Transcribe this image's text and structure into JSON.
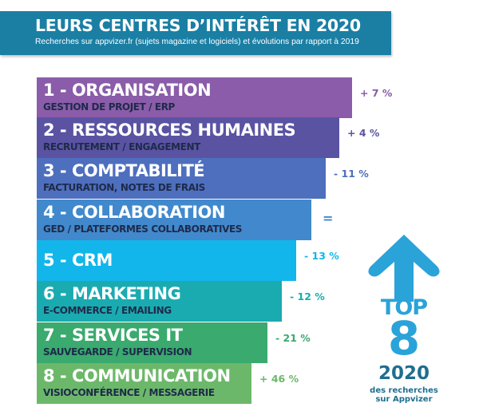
{
  "header": {
    "title": "LEURS CENTRES D’INTÉRÊT EN 2020",
    "subtitle": "Recherches sur appvizer.fr (sujets magazine et logiciels) et évolutions par rapport à 2019"
  },
  "ranking": [
    {
      "rank": 1,
      "label": "1 - ORGANISATION",
      "description": "GESTION DE PROJET / ERP",
      "change": "+ 7 %",
      "color": "#8a5ca9"
    },
    {
      "rank": 2,
      "label": "2 - RESSOURCES HUMAINES",
      "description": "RECRUTEMENT / ENGAGEMENT",
      "change": "+ 4 %",
      "color": "#5a53a2"
    },
    {
      "rank": 3,
      "label": "3 - COMPTABILITÉ",
      "description": "FACTURATION, NOTES DE FRAIS",
      "change": "- 11 %",
      "color": "#4e6fbe"
    },
    {
      "rank": 4,
      "label": "4 - COLLABORATION",
      "description": "GED / PLATEFORMES COLLABORATIVES",
      "change": "=",
      "color": "#4189cc"
    },
    {
      "rank": 5,
      "label": "5 - CRM",
      "description": "",
      "change": "- 13 %",
      "color": "#12b6ea"
    },
    {
      "rank": 6,
      "label": "6 - MARKETING",
      "description": "E-COMMERCE / EMAILING",
      "change": "- 12 %",
      "color": "#1aabb1"
    },
    {
      "rank": 7,
      "label": "7 - SERVICES IT",
      "description": "SAUVEGARDE / SUPERVISION",
      "change": "- 21 %",
      "color": "#3aaa6e"
    },
    {
      "rank": 8,
      "label": "8 - COMMUNICATION",
      "description": "VISIOCONFÉRENCE / MESSAGERIE",
      "change": "+ 46 %",
      "color": "#6cb86a"
    }
  ],
  "badge": {
    "top": "TOP",
    "number": "8",
    "year": "2020",
    "caption_line1": "des recherches",
    "caption_line2": "sur Appvizer",
    "arrow_color": "#2aa3d9"
  }
}
